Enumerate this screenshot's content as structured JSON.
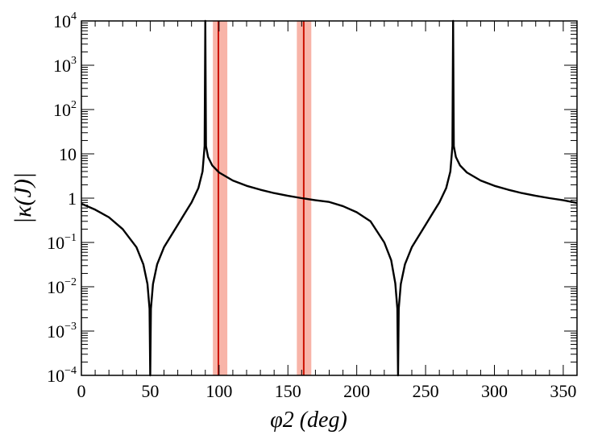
{
  "chart_data": {
    "type": "line",
    "xlabel": "φ2 (deg)",
    "ylabel": "|κ(J)|",
    "xlim": [
      0,
      360
    ],
    "ylim": [
      0.0001,
      10000
    ],
    "y_scale": "log",
    "grid": false,
    "x_ticks": [
      0,
      50,
      100,
      150,
      200,
      250,
      300,
      350
    ],
    "y_ticks": [
      {
        "value": 0.0001,
        "base": "10",
        "exp": "−4"
      },
      {
        "value": 0.001,
        "base": "10",
        "exp": "−3"
      },
      {
        "value": 0.01,
        "base": "10",
        "exp": "−2"
      },
      {
        "value": 0.1,
        "base": "10",
        "exp": "−1"
      },
      {
        "value": 1,
        "base": "1",
        "exp": ""
      },
      {
        "value": 10,
        "base": "10",
        "exp": ""
      },
      {
        "value": 100,
        "base": "10",
        "exp": "2"
      },
      {
        "value": 1000,
        "base": "10",
        "exp": "3"
      },
      {
        "value": 10000,
        "base": "10",
        "exp": "4"
      }
    ],
    "series": [
      {
        "color": "#000000",
        "x": [
          0,
          10,
          20,
          30,
          40,
          45,
          48,
          49.5,
          50,
          50.5,
          52,
          55,
          60,
          65,
          70,
          75,
          80,
          85,
          88,
          89.5,
          90,
          90.5,
          92,
          95,
          100,
          110,
          120,
          130,
          140,
          150,
          160,
          170,
          180,
          190,
          200,
          210,
          220,
          225,
          228,
          229.5,
          230,
          230.5,
          232,
          235,
          240,
          245,
          250,
          255,
          260,
          265,
          268,
          269.5,
          270,
          270.5,
          272,
          275,
          280,
          290,
          300,
          310,
          320,
          330,
          340,
          350,
          360
        ],
        "y": [
          0.75,
          0.55,
          0.37,
          0.2,
          0.078,
          0.032,
          0.0115,
          0.0032,
          0.0001,
          0.0032,
          0.0115,
          0.032,
          0.078,
          0.14,
          0.25,
          0.45,
          0.8,
          1.7,
          4.0,
          15,
          10000,
          15,
          8.5,
          5.5,
          3.8,
          2.5,
          1.9,
          1.55,
          1.3,
          1.13,
          1.0,
          0.9,
          0.82,
          0.66,
          0.48,
          0.3,
          0.1,
          0.04,
          0.012,
          0.0032,
          0.0001,
          0.0032,
          0.0115,
          0.032,
          0.078,
          0.14,
          0.25,
          0.45,
          0.8,
          1.7,
          4.0,
          15,
          10000,
          15,
          8.5,
          5.5,
          3.8,
          2.5,
          1.9,
          1.55,
          1.3,
          1.13,
          1.0,
          0.9,
          0.78
        ]
      }
    ],
    "bands": [
      {
        "center": 99.5,
        "low": 95.5,
        "high": 106,
        "band_color": "#f8b4a8",
        "line_color": "#cc1100"
      },
      {
        "center": 161.5,
        "low": 156.5,
        "high": 167,
        "band_color": "#f8b4a8",
        "line_color": "#cc1100"
      }
    ]
  }
}
